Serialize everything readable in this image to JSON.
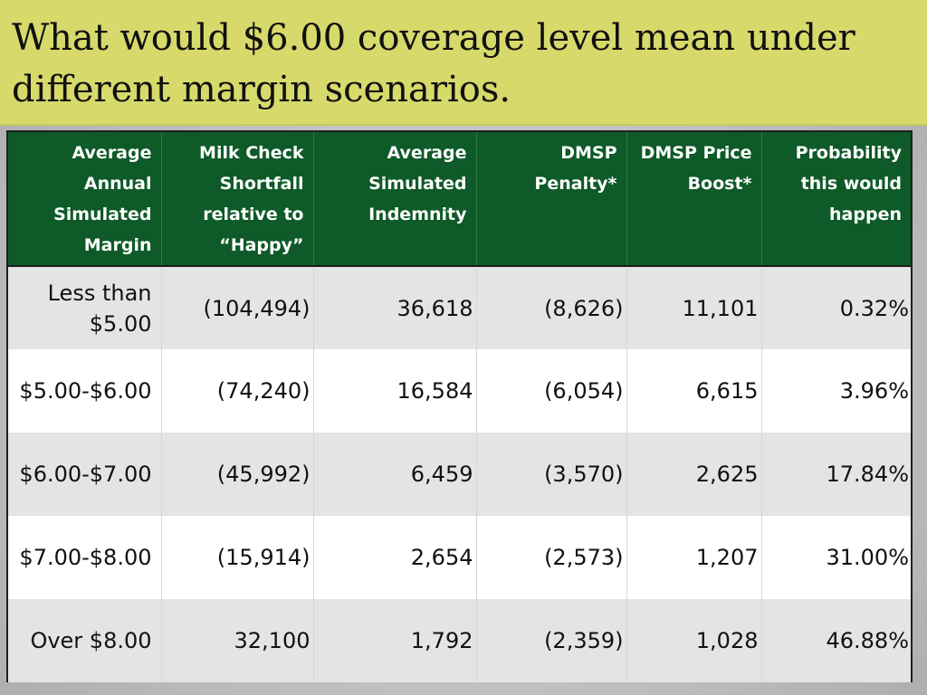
{
  "slide": {
    "title": "What would $6.00 coverage level mean under different margin scenarios."
  },
  "table": {
    "headers": [
      "Average Annual Simulated Margin",
      "Milk Check Shortfall relative to “Happy”",
      "Average Simulated Indemnity",
      "DMSP Penalty*",
      "DMSP Price Boost*",
      "Probability this would happen"
    ],
    "rows": [
      [
        "Less than $5.00",
        "(104,494)",
        "36,618",
        "(8,626)",
        "11,101",
        "0.32%"
      ],
      [
        "$5.00-$6.00",
        "(74,240)",
        "16,584",
        "(6,054)",
        "6,615",
        "3.96%"
      ],
      [
        "$6.00-$7.00",
        "(45,992)",
        "6,459",
        "(3,570)",
        "2,625",
        "17.84%"
      ],
      [
        "$7.00-$8.00",
        "(15,914)",
        "2,654",
        "(2,573)",
        "1,207",
        "31.00%"
      ],
      [
        "Over $8.00",
        "32,100",
        "1,792",
        "(2,359)",
        "1,028",
        "46.88%"
      ]
    ]
  },
  "colors": {
    "title_band": "#d8d96b",
    "header_bg": "#0e5a28",
    "row_shaded": "#e4e4e4",
    "row_plain": "#ffffff"
  }
}
